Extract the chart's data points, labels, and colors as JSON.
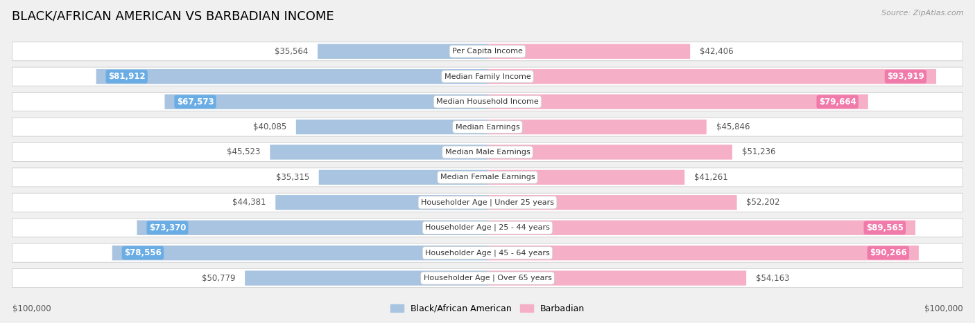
{
  "title": "BLACK/AFRICAN AMERICAN VS BARBADIAN INCOME",
  "source": "Source: ZipAtlas.com",
  "categories": [
    "Per Capita Income",
    "Median Family Income",
    "Median Household Income",
    "Median Earnings",
    "Median Male Earnings",
    "Median Female Earnings",
    "Householder Age | Under 25 years",
    "Householder Age | 25 - 44 years",
    "Householder Age | 45 - 64 years",
    "Householder Age | Over 65 years"
  ],
  "black_values": [
    35564,
    81912,
    67573,
    40085,
    45523,
    35315,
    44381,
    73370,
    78556,
    50779
  ],
  "barbadian_values": [
    42406,
    93919,
    79664,
    45846,
    51236,
    41261,
    52202,
    89565,
    90266,
    54163
  ],
  "black_labels": [
    "$35,564",
    "$81,912",
    "$67,573",
    "$40,085",
    "$45,523",
    "$35,315",
    "$44,381",
    "$73,370",
    "$78,556",
    "$50,779"
  ],
  "barbadian_labels": [
    "$42,406",
    "$93,919",
    "$79,664",
    "$45,846",
    "$51,236",
    "$41,261",
    "$52,202",
    "$89,565",
    "$90,266",
    "$54,163"
  ],
  "black_color_fill": "#a8c4e0",
  "black_color_solid": "#6aade4",
  "barbadian_color_fill": "#f5b0c8",
  "barbadian_color_solid": "#f07aaa",
  "max_value": 100000,
  "bg_color": "#f0f0f0",
  "row_bg": "#ffffff",
  "title_fontsize": 13,
  "label_fontsize": 8.5,
  "category_fontsize": 8,
  "source_fontsize": 8,
  "legend_fontsize": 9,
  "inside_label_threshold": 55000
}
